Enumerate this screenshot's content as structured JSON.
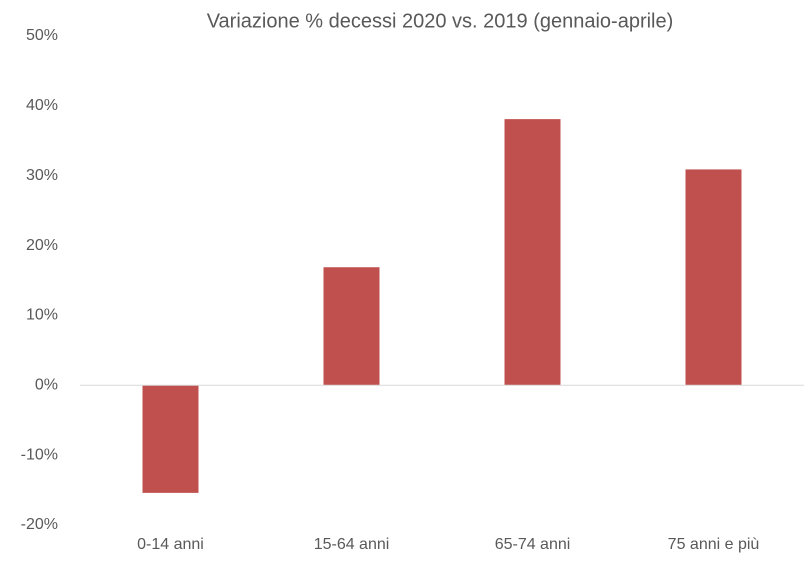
{
  "chart_data": {
    "type": "bar",
    "title": "Variazione % decessi 2020 vs. 2019 (gennaio-aprile)",
    "categories": [
      "0-14 anni",
      "15-64 anni",
      "65-74 anni",
      "75 anni e più"
    ],
    "values": [
      -15.4,
      16.9,
      38.1,
      30.9
    ],
    "color": "#c0504d",
    "ylim": [
      -20,
      50
    ],
    "yticks": [
      {
        "value": -20,
        "label": "-20%"
      },
      {
        "value": -10,
        "label": "-10%"
      },
      {
        "value": 0,
        "label": "0%"
      },
      {
        "value": 10,
        "label": "10%"
      },
      {
        "value": 20,
        "label": "20%"
      },
      {
        "value": 30,
        "label": "30%"
      },
      {
        "value": 40,
        "label": "40%"
      },
      {
        "value": 50,
        "label": "50%"
      }
    ],
    "grid": false
  }
}
